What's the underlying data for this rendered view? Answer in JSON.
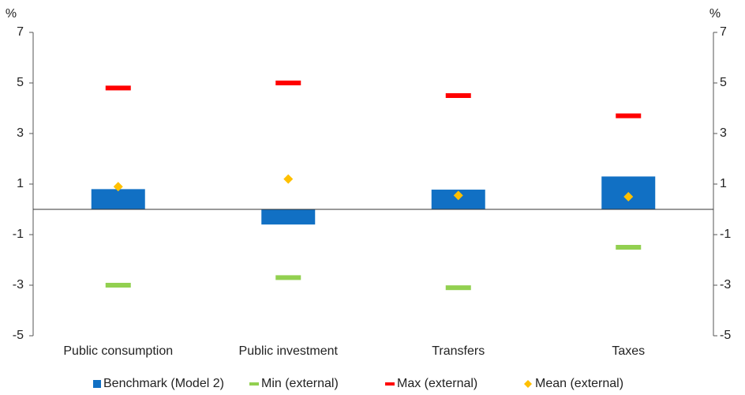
{
  "chart_data": {
    "type": "bar",
    "y_unit_label": "%",
    "y2_unit_label": "%",
    "categories": [
      "Public consumption",
      "Public investment",
      "Transfers",
      "Taxes"
    ],
    "series": [
      {
        "name": "Benchmark (Model 2)",
        "color": "#1170c4",
        "style": "bar",
        "values": [
          0.8,
          -0.6,
          0.78,
          1.3
        ]
      },
      {
        "name": "Min (external)",
        "color": "#92d050",
        "style": "dash",
        "values": [
          -3.0,
          -2.7,
          -3.1,
          -1.5
        ]
      },
      {
        "name": "Max (external)",
        "color": "#ff0000",
        "style": "dash",
        "values": [
          4.8,
          5.0,
          4.5,
          3.7
        ]
      },
      {
        "name": "Mean (external)",
        "color": "#ffc000",
        "style": "diamond",
        "values": [
          0.9,
          1.2,
          0.55,
          0.5
        ]
      }
    ],
    "ylim": [
      -5,
      7
    ],
    "yticks": [
      -5,
      -3,
      -1,
      1,
      3,
      5,
      7
    ],
    "y2lim": [
      -5,
      7
    ],
    "y2ticks": [
      -5,
      -3,
      -1,
      1,
      3,
      5,
      7
    ],
    "legend": "bottom"
  }
}
